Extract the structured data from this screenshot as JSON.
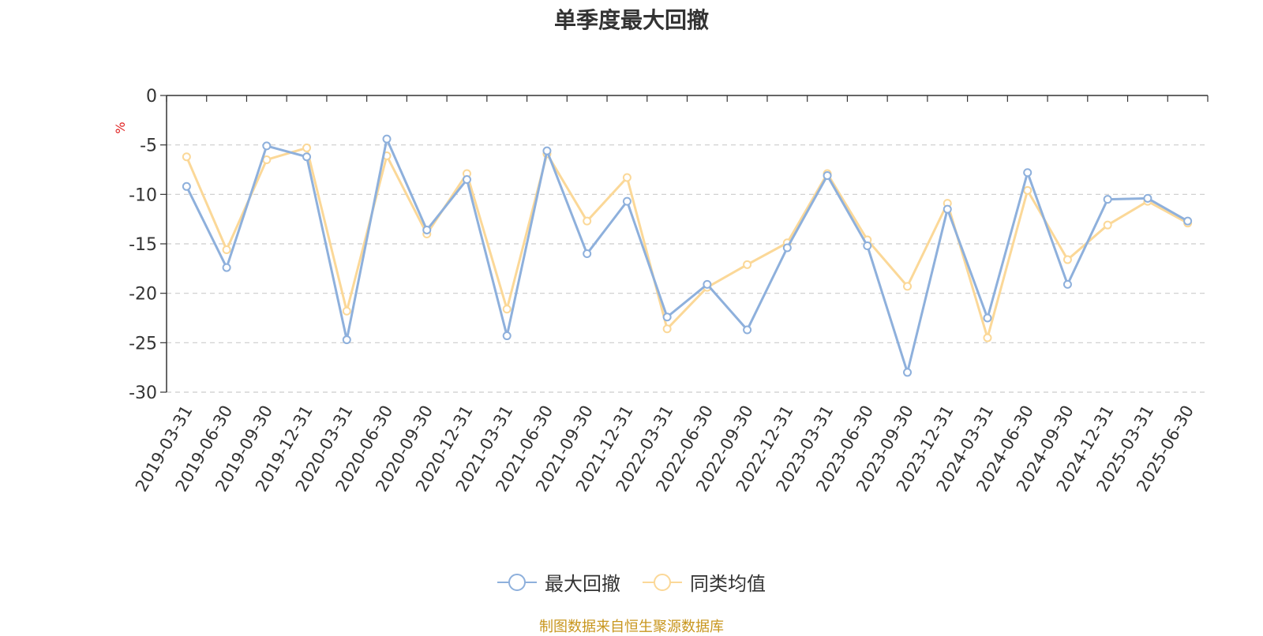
{
  "chart_data": {
    "type": "line",
    "title": "单季度最大回撤",
    "ylabel": "%",
    "ylim": [
      -30,
      0
    ],
    "yticks": [
      "0",
      "-5",
      "-10",
      "-15",
      "-20",
      "-25",
      "-30"
    ],
    "grid": true,
    "legend_position": "bottom",
    "categories": [
      "2019-03-31",
      "2019-06-30",
      "2019-09-30",
      "2019-12-31",
      "2020-03-31",
      "2020-06-30",
      "2020-09-30",
      "2020-12-31",
      "2021-03-31",
      "2021-06-30",
      "2021-09-30",
      "2021-12-31",
      "2022-03-31",
      "2022-06-30",
      "2022-09-30",
      "2022-12-31",
      "2023-03-31",
      "2023-06-30",
      "2023-09-30",
      "2023-12-31",
      "2024-03-31",
      "2024-06-30",
      "2024-09-30",
      "2024-12-31",
      "2025-03-31",
      "2025-06-30"
    ],
    "series": [
      {
        "name": "最大回撤",
        "color": "#8eb0dc",
        "values": [
          -9.2,
          -17.4,
          -5.1,
          -6.2,
          -24.7,
          -4.4,
          -13.6,
          -8.5,
          -24.3,
          -5.6,
          -16.0,
          -10.7,
          -22.4,
          -19.1,
          -23.7,
          -15.4,
          -8.1,
          -15.2,
          -28.0,
          -11.5,
          -22.5,
          -7.8,
          -19.1,
          -10.5,
          -10.4,
          -12.7
        ]
      },
      {
        "name": "同类均值",
        "color": "#fbd898",
        "values": [
          -6.2,
          -15.6,
          -6.5,
          -5.3,
          -21.8,
          -6.1,
          -14.0,
          -7.9,
          -21.6,
          -5.9,
          -12.7,
          -8.3,
          -23.6,
          -19.4,
          -17.1,
          -14.9,
          -7.9,
          -14.6,
          -19.3,
          -10.9,
          -24.5,
          -9.6,
          -16.6,
          -13.1,
          -10.7,
          -12.9
        ]
      }
    ]
  },
  "legend": [
    "最大回撤",
    "同类均值"
  ],
  "source": "制图数据来自恒生聚源数据库"
}
